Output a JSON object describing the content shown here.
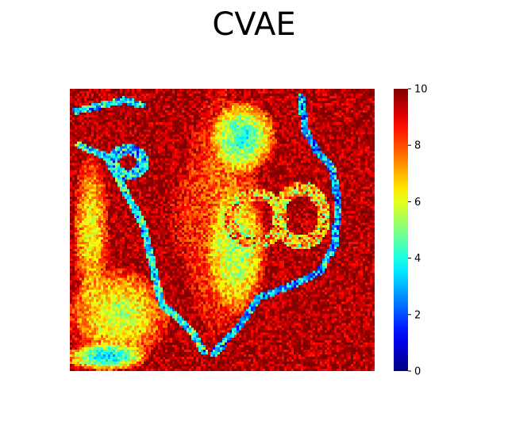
{
  "chart_data": {
    "type": "heatmap",
    "title": "CVAE",
    "xlabel": "",
    "ylabel": "",
    "colormap": "jet",
    "colorbar": {
      "vmin": 0,
      "vmax": 10,
      "ticks": [
        0,
        2,
        4,
        6,
        8,
        10
      ],
      "tick_labels": [
        "0",
        "2",
        "4",
        "6",
        "8",
        "10"
      ]
    },
    "grid": false,
    "axes_visible": false,
    "features": [
      {
        "kind": "background",
        "value": 9.6
      },
      {
        "kind": "patch",
        "cx": 0.5,
        "cy": 0.45,
        "rx": 0.13,
        "ry": 0.46,
        "value": 7.2
      },
      {
        "kind": "patch",
        "cx": 0.57,
        "cy": 0.17,
        "rx": 0.11,
        "ry": 0.13,
        "value": 3.6
      },
      {
        "kind": "patch",
        "cx": 0.55,
        "cy": 0.58,
        "rx": 0.1,
        "ry": 0.22,
        "value": 5.0
      },
      {
        "kind": "patch",
        "cx": 0.4,
        "cy": 0.45,
        "rx": 0.08,
        "ry": 0.2,
        "value": 8.3
      },
      {
        "kind": "patch",
        "cx": 0.16,
        "cy": 0.8,
        "rx": 0.17,
        "ry": 0.17,
        "value": 5.2
      },
      {
        "kind": "patch",
        "cx": 0.07,
        "cy": 0.5,
        "rx": 0.06,
        "ry": 0.28,
        "value": 5.8
      },
      {
        "kind": "patch",
        "cx": 0.12,
        "cy": 0.95,
        "rx": 0.14,
        "ry": 0.05,
        "value": 2.8
      },
      {
        "kind": "ring",
        "cx": 0.61,
        "cy": 0.46,
        "rx": 0.085,
        "ry": 0.085,
        "width": 0.02,
        "value": 7.0
      },
      {
        "kind": "ring",
        "cx": 0.76,
        "cy": 0.45,
        "rx": 0.075,
        "ry": 0.095,
        "width": 0.02,
        "value": 6.8
      },
      {
        "kind": "ring",
        "cx": 0.19,
        "cy": 0.26,
        "rx": 0.05,
        "ry": 0.045,
        "width": 0.018,
        "value": 3.5
      },
      {
        "kind": "contour",
        "points": [
          [
            0.03,
            0.2
          ],
          [
            0.12,
            0.24
          ],
          [
            0.17,
            0.34
          ],
          [
            0.24,
            0.48
          ],
          [
            0.27,
            0.62
          ],
          [
            0.3,
            0.76
          ],
          [
            0.4,
            0.86
          ],
          [
            0.44,
            0.93
          ]
        ],
        "width": 0.012,
        "value": 4.0
      },
      {
        "kind": "contour",
        "points": [
          [
            0.76,
            0.03
          ],
          [
            0.77,
            0.14
          ],
          [
            0.81,
            0.22
          ],
          [
            0.86,
            0.28
          ],
          [
            0.88,
            0.4
          ],
          [
            0.87,
            0.55
          ],
          [
            0.82,
            0.65
          ],
          [
            0.72,
            0.7
          ],
          [
            0.62,
            0.74
          ],
          [
            0.55,
            0.85
          ],
          [
            0.47,
            0.94
          ]
        ],
        "width": 0.012,
        "value": 3.0
      },
      {
        "kind": "contour",
        "points": [
          [
            0.02,
            0.08
          ],
          [
            0.1,
            0.06
          ],
          [
            0.18,
            0.04
          ],
          [
            0.24,
            0.06
          ]
        ],
        "width": 0.012,
        "value": 3.5
      }
    ]
  }
}
